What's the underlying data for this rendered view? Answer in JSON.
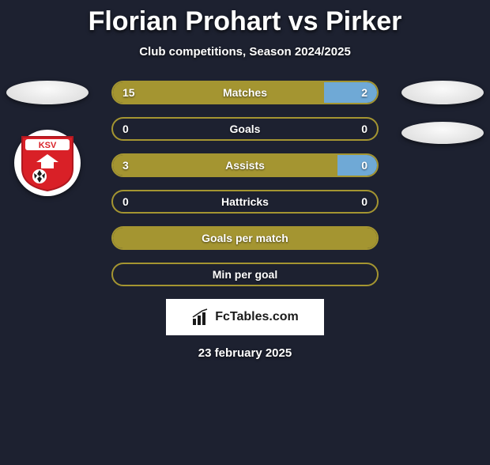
{
  "title": "Florian Prohart vs Pirker",
  "subtitle": "Club competitions, Season 2024/2025",
  "date": "23 february 2025",
  "brand": "FcTables.com",
  "colors": {
    "olive": "#a49531",
    "blue": "#6fa9d6",
    "background": "#1d2130",
    "white": "#ffffff"
  },
  "left_club_code": "KSV",
  "stats": [
    {
      "label": "Matches",
      "left_val": "15",
      "right_val": "2",
      "left_pct": 80,
      "right_pct": 20
    },
    {
      "label": "Goals",
      "left_val": "0",
      "right_val": "0",
      "left_pct": 0,
      "right_pct": 0
    },
    {
      "label": "Assists",
      "left_val": "3",
      "right_val": "0",
      "left_pct": 85,
      "right_pct": 15
    },
    {
      "label": "Hattricks",
      "left_val": "0",
      "right_val": "0",
      "left_pct": 0,
      "right_pct": 0
    },
    {
      "label": "Goals per match",
      "left_val": "",
      "right_val": "",
      "left_pct": 100,
      "right_pct": 0
    },
    {
      "label": "Min per goal",
      "left_val": "",
      "right_val": "",
      "left_pct": 0,
      "right_pct": 0
    }
  ],
  "bar_style": {
    "height": 30,
    "radius": 15,
    "border_width": 2,
    "label_fontsize": 14
  }
}
